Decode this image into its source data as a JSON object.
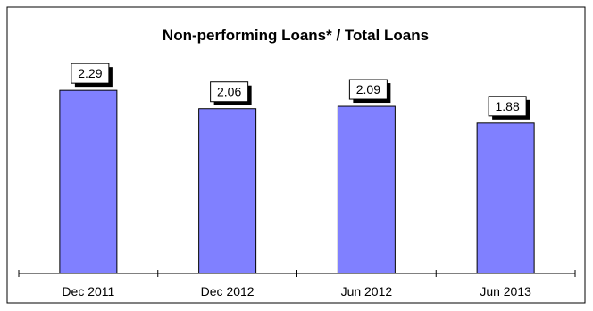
{
  "chart_data": {
    "type": "bar",
    "title": "Non-performing Loans* / Total Loans",
    "categories": [
      "Dec 2011",
      "Dec 2012",
      "Jun 2012",
      "Jun 2013"
    ],
    "values": [
      2.29,
      2.06,
      2.09,
      1.88
    ],
    "data_labels": [
      "2.29",
      "2.06",
      "2.09",
      "1.88"
    ],
    "xlabel": "",
    "ylabel": "",
    "ylim": [
      0,
      2.75
    ],
    "grid": false,
    "legend": "none",
    "colors": {
      "bar_fill": "#8080ff",
      "bar_stroke": "#000000",
      "frame": "#000000",
      "label_bg": "#ffffff",
      "label_shadow": "#000000",
      "text": "#000000"
    }
  }
}
